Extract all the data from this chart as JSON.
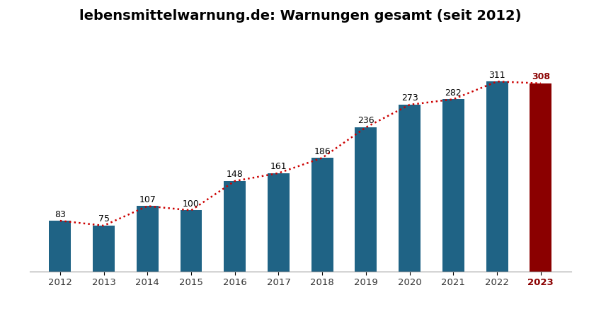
{
  "title": "lebensmittelwarnung.de: Warnungen gesamt (seit 2012)",
  "years": [
    2012,
    2013,
    2014,
    2015,
    2016,
    2017,
    2018,
    2019,
    2020,
    2021,
    2022,
    2023
  ],
  "values": [
    83,
    75,
    107,
    100,
    148,
    161,
    186,
    236,
    273,
    282,
    311,
    308
  ],
  "bar_colors": [
    "#1f6385",
    "#1f6385",
    "#1f6385",
    "#1f6385",
    "#1f6385",
    "#1f6385",
    "#1f6385",
    "#1f6385",
    "#1f6385",
    "#1f6385",
    "#1f6385",
    "#8b0000"
  ],
  "highlight_year": 2023,
  "highlight_color": "#8b0000",
  "normal_color": "#1f6385",
  "trendline_color": "#cc0000",
  "background_color": "#ffffff",
  "title_fontsize": 14,
  "label_fontsize": 9,
  "tick_fontsize": 9.5,
  "bar_width": 0.5
}
